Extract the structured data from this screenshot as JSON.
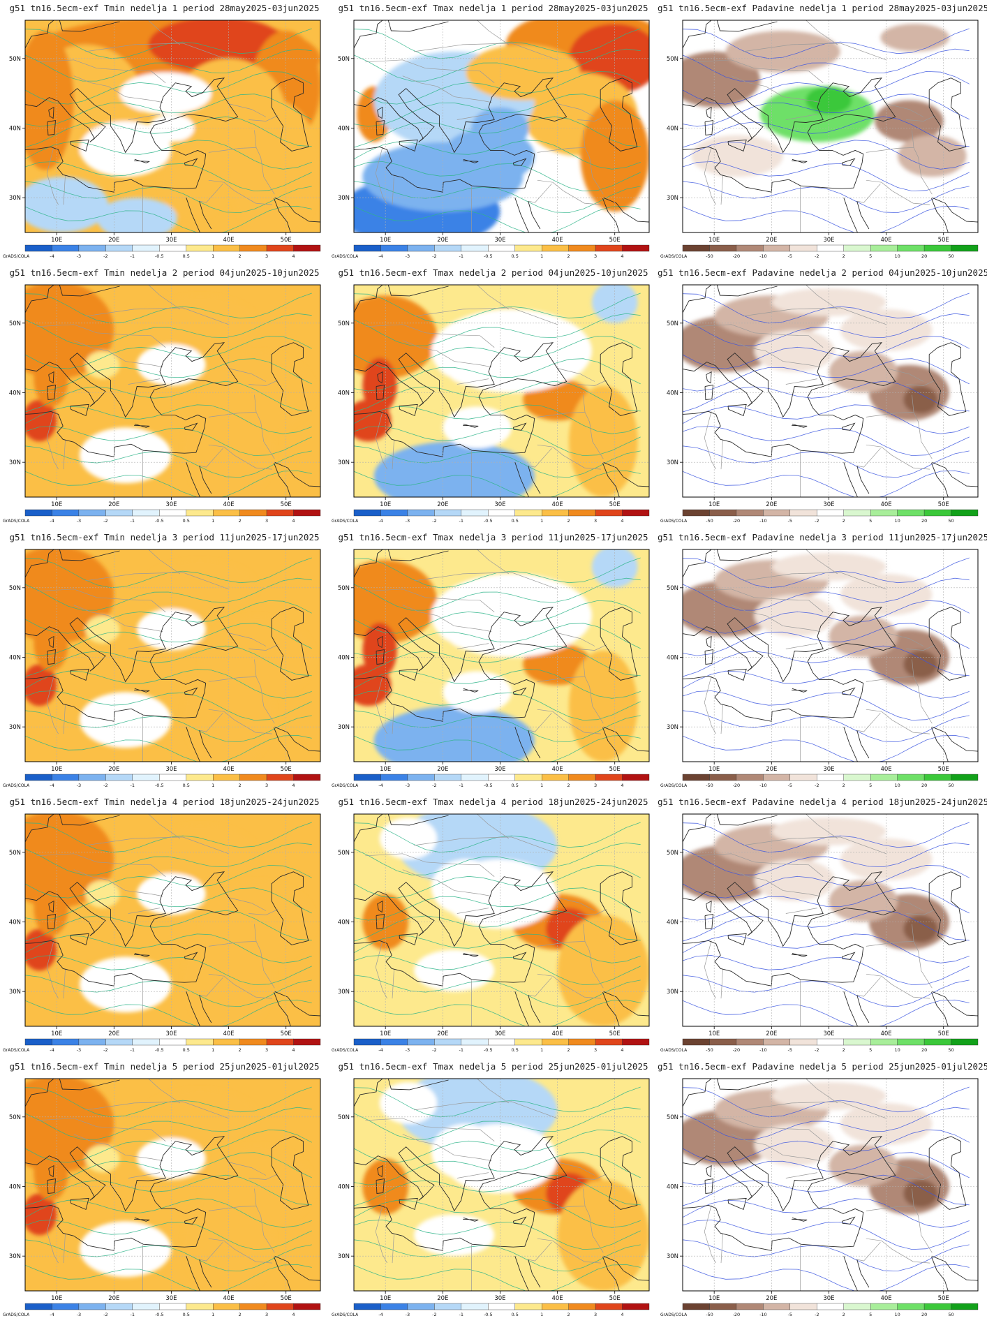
{
  "credit": "GrADS/COLA",
  "lon_ticks": [
    "10E",
    "20E",
    "30E",
    "40E",
    "50E"
  ],
  "lat_ticks": [
    "50N",
    "40N",
    "30N"
  ],
  "colorbars": {
    "temperature": {
      "labels": [
        "-4",
        "-3",
        "-2",
        "-1",
        "-0.5",
        "0.5",
        "1",
        "2",
        "3",
        "4"
      ],
      "colors": [
        "#1a5fc9",
        "#3b82e6",
        "#7cb2ef",
        "#b5d8f7",
        "#e1f3fd",
        "#ffffff",
        "#fde98d",
        "#fbbf46",
        "#f08a1e",
        "#e0451b",
        "#b11212"
      ]
    },
    "precipitation": {
      "labels": [
        "-50",
        "-20",
        "-10",
        "-5",
        "-2",
        "2",
        "5",
        "10",
        "20",
        "50"
      ],
      "colors": [
        "#6b4231",
        "#8a5e4a",
        "#b08876",
        "#d3b5a6",
        "#f1e3da",
        "#ffffff",
        "#d9f7cf",
        "#a8ee9a",
        "#6ee067",
        "#3bc83a",
        "#12a11a"
      ]
    }
  },
  "panels": [
    {
      "title": "g51 tn16.5ecm-exf Tmin nedelja 1 period 28may2025-03jun2025",
      "kind": "temperature",
      "scheme": "tmin1"
    },
    {
      "title": "g51 tn16.5ecm-exf Tmax nedelja 1 period 28may2025-03jun2025",
      "kind": "temperature",
      "scheme": "tmax1"
    },
    {
      "title": "g51 tn16.5ecm-exf Padavine nedelja 1 period 28may2025-03jun2025",
      "kind": "precipitation",
      "scheme": "pad1"
    },
    {
      "title": "g51 tn16.5ecm-exf Tmin nedelja 2 period 04jun2025-10jun2025",
      "kind": "temperature",
      "scheme": "tmin"
    },
    {
      "title": "g51 tn16.5ecm-exf Tmax nedelja 2 period 04jun2025-10jun2025",
      "kind": "temperature",
      "scheme": "tmax"
    },
    {
      "title": "g51 tn16.5ecm-exf Padavine nedelja 2 period 04jun2025-10jun2025",
      "kind": "precipitation",
      "scheme": "pad"
    },
    {
      "title": "g51 tn16.5ecm-exf Tmin nedelja 3 period 11jun2025-17jun2025",
      "kind": "temperature",
      "scheme": "tmin"
    },
    {
      "title": "g51 tn16.5ecm-exf Tmax nedelja 3 period 11jun2025-17jun2025",
      "kind": "temperature",
      "scheme": "tmax"
    },
    {
      "title": "g51 tn16.5ecm-exf Padavine nedelja 3 period 11jun2025-17jun2025",
      "kind": "precipitation",
      "scheme": "pad"
    },
    {
      "title": "g51 tn16.5ecm-exf Tmin nedelja 4 period 18jun2025-24jun2025",
      "kind": "temperature",
      "scheme": "tmin"
    },
    {
      "title": "g51 tn16.5ecm-exf Tmax nedelja 4 period 18jun2025-24jun2025",
      "kind": "temperature",
      "scheme": "tmax4"
    },
    {
      "title": "g51 tn16.5ecm-exf Padavine nedelja 4 period 18jun2025-24jun2025",
      "kind": "precipitation",
      "scheme": "pad"
    },
    {
      "title": "g51 tn16.5ecm-exf Tmin nedelja 5 period 25jun2025-01jul2025",
      "kind": "temperature",
      "scheme": "tmin"
    },
    {
      "title": "g51 tn16.5ecm-exf Tmax nedelja 5 period 25jun2025-01jul2025",
      "kind": "temperature",
      "scheme": "tmax4"
    },
    {
      "title": "g51 tn16.5ecm-exf Padavine nedelja 5 period 25jun2025-01jul2025",
      "kind": "precipitation",
      "scheme": "pad"
    }
  ]
}
